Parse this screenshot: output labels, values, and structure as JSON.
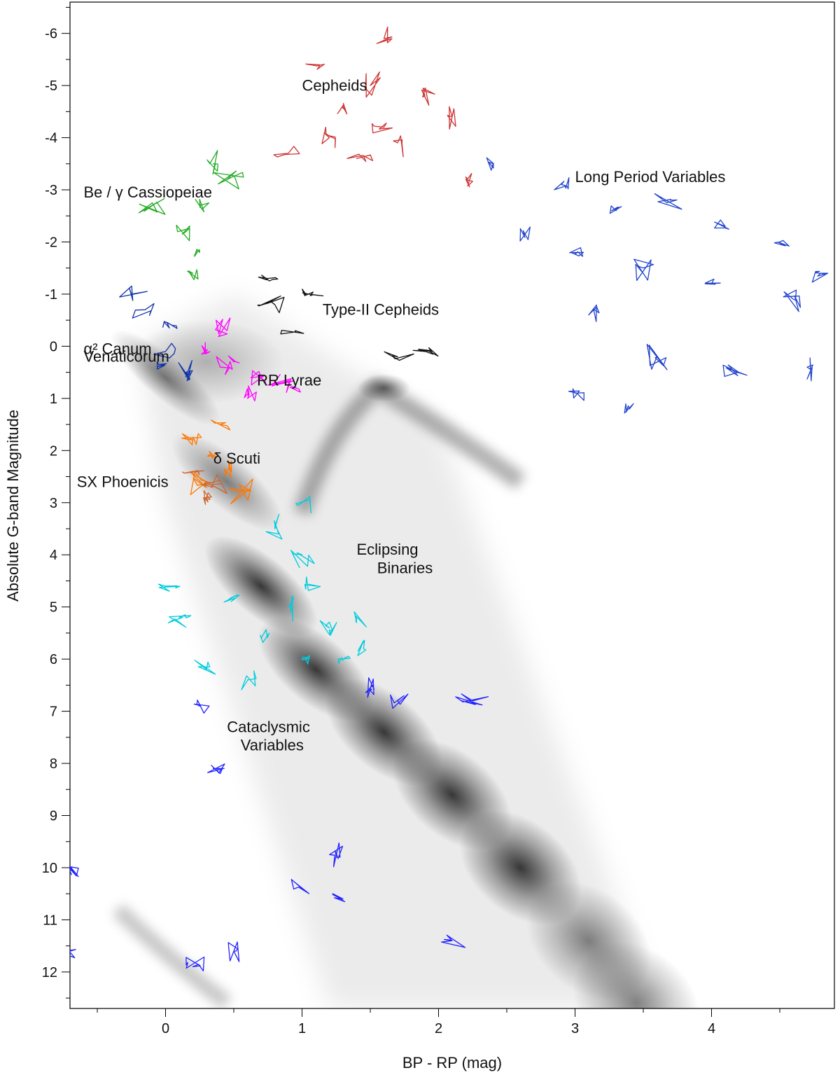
{
  "chart_data": {
    "type": "scatter",
    "title": "",
    "xlabel": "BP - RP (mag)",
    "ylabel": "Absolute G-band Magnitude",
    "xlim": [
      -0.7,
      4.9
    ],
    "ylim": [
      12.7,
      -6.6
    ],
    "x_ticks": [
      0,
      1,
      2,
      3,
      4
    ],
    "y_ticks": [
      -6,
      -5,
      -4,
      -3,
      -2,
      -1,
      0,
      1,
      2,
      3,
      4,
      5,
      6,
      7,
      8,
      9,
      10,
      11,
      12
    ],
    "grid": false,
    "background": "grey density of Gaia sources: main sequence from (0, 0.5) to (3.4, 12.5), red-giant clump near (1.6, 0.8), white-dwarf sequence near (-0.3, 11) to (0.4, 12.5)",
    "annotations": [
      {
        "text": "Cepheids",
        "x": 1.0,
        "y": -4.9
      },
      {
        "text": "Long Period Variables",
        "x": 3.0,
        "y": -3.15
      },
      {
        "text": "Be / γ Cassiopeiae",
        "x": -0.6,
        "y": -2.85
      },
      {
        "text": "Type-II Cepheids",
        "x": 1.15,
        "y": -0.6
      },
      {
        "text": "α² Canum",
        "x": -0.6,
        "y": 0.15
      },
      {
        "text": "Venaticorum",
        "x": -0.6,
        "y": 0.3
      },
      {
        "text": "RR Lyrae",
        "x": 0.67,
        "y": 0.75
      },
      {
        "text": "δ Scuti",
        "x": 0.35,
        "y": 2.25
      },
      {
        "text": "SX Phoenicis",
        "x": -0.65,
        "y": 2.7
      },
      {
        "text": "Eclipsing",
        "x": 1.4,
        "y": 4.0
      },
      {
        "text": "Binaries",
        "x": 1.55,
        "y": 4.35
      },
      {
        "text": "Cataclysmic",
        "x": 0.45,
        "y": 7.4
      },
      {
        "text": "Variables",
        "x": 0.55,
        "y": 7.75
      }
    ],
    "series": [
      {
        "name": "Cepheids",
        "color": "#cc3333",
        "points": [
          [
            1.1,
            -5.4
          ],
          [
            1.6,
            -5.9
          ],
          [
            1.5,
            -5.0
          ],
          [
            1.9,
            -4.8
          ],
          [
            1.3,
            -4.6
          ],
          [
            1.6,
            -4.2
          ],
          [
            1.2,
            -4.0
          ],
          [
            0.9,
            -3.7
          ],
          [
            1.4,
            -3.6
          ],
          [
            1.7,
            -3.9
          ],
          [
            2.1,
            -4.4
          ],
          [
            2.2,
            -3.2
          ]
        ]
      },
      {
        "name": "Long Period Variables",
        "color": "#2244cc",
        "points": [
          [
            2.4,
            -3.5
          ],
          [
            2.9,
            -3.1
          ],
          [
            3.3,
            -2.6
          ],
          [
            3.7,
            -2.8
          ],
          [
            4.1,
            -2.3
          ],
          [
            4.5,
            -2.0
          ],
          [
            2.6,
            -2.2
          ],
          [
            3.0,
            -1.8
          ],
          [
            3.5,
            -1.5
          ],
          [
            4.0,
            -1.2
          ],
          [
            4.6,
            -0.9
          ],
          [
            3.1,
            -0.6
          ],
          [
            3.6,
            0.2
          ],
          [
            4.2,
            0.5
          ],
          [
            3.0,
            0.9
          ],
          [
            3.4,
            1.2
          ],
          [
            4.8,
            -1.4
          ],
          [
            4.7,
            0.4
          ]
        ]
      },
      {
        "name": "Be / γ Cassiopeiae",
        "color": "#22aa22",
        "points": [
          [
            0.35,
            -3.5
          ],
          [
            0.25,
            -2.7
          ],
          [
            0.15,
            -2.2
          ],
          [
            0.25,
            -1.8
          ],
          [
            0.2,
            -1.4
          ],
          [
            0.45,
            -3.2
          ],
          [
            -0.1,
            -2.7
          ]
        ]
      },
      {
        "name": "Type-II Cepheids",
        "color": "#111111",
        "points": [
          [
            0.75,
            -1.3
          ],
          [
            1.05,
            -1.0
          ],
          [
            0.8,
            -0.8
          ],
          [
            0.95,
            -0.3
          ],
          [
            1.9,
            0.1
          ],
          [
            1.7,
            0.2
          ]
        ]
      },
      {
        "name": "α² Canum Venaticorum",
        "color": "#1133aa",
        "points": [
          [
            -0.25,
            -1.0
          ],
          [
            -0.15,
            -0.7
          ],
          [
            0.05,
            -0.4
          ],
          [
            -0.05,
            0.35
          ],
          [
            0.15,
            0.5
          ],
          [
            0.0,
            0.1
          ]
        ]
      },
      {
        "name": "RR Lyrae",
        "color": "#ff00ff",
        "points": [
          [
            0.3,
            0.1
          ],
          [
            0.5,
            0.3
          ],
          [
            0.7,
            0.6
          ],
          [
            0.45,
            -0.3
          ],
          [
            0.85,
            0.7
          ],
          [
            0.6,
            1.0
          ],
          [
            0.4,
            0.4
          ],
          [
            0.95,
            0.8
          ]
        ]
      },
      {
        "name": "δ Scuti",
        "color": "#ff7700",
        "points": [
          [
            0.2,
            1.8
          ],
          [
            0.35,
            2.1
          ],
          [
            0.45,
            2.4
          ],
          [
            0.3,
            2.6
          ],
          [
            0.55,
            2.8
          ],
          [
            0.4,
            1.5
          ]
        ]
      },
      {
        "name": "SX Phoenicis",
        "color": "#cc6633",
        "points": [
          [
            0.2,
            2.4
          ],
          [
            0.35,
            2.7
          ],
          [
            0.3,
            2.9
          ]
        ]
      },
      {
        "name": "Eclipsing Binaries",
        "color": "#00ccdd",
        "points": [
          [
            0.8,
            3.5
          ],
          [
            1.0,
            4.0
          ],
          [
            1.1,
            4.6
          ],
          [
            0.9,
            5.0
          ],
          [
            1.2,
            5.4
          ],
          [
            1.3,
            6.0
          ],
          [
            0.7,
            5.6
          ],
          [
            1.4,
            5.3
          ],
          [
            1.0,
            3.0
          ],
          [
            0.5,
            4.8
          ],
          [
            0.1,
            5.2
          ],
          [
            0.3,
            6.2
          ],
          [
            0.6,
            6.4
          ],
          [
            1.0,
            6.0
          ],
          [
            0.0,
            4.6
          ],
          [
            1.45,
            5.8
          ]
        ]
      },
      {
        "name": "Cataclysmic Variables",
        "color": "#2222ff",
        "points": [
          [
            0.25,
            6.9
          ],
          [
            2.25,
            6.8
          ],
          [
            1.5,
            6.6
          ],
          [
            1.7,
            6.8
          ],
          [
            0.35,
            8.1
          ],
          [
            -0.7,
            10.0
          ],
          [
            1.25,
            9.8
          ],
          [
            1.0,
            10.4
          ],
          [
            1.3,
            10.6
          ],
          [
            -0.7,
            11.6
          ],
          [
            0.5,
            11.6
          ],
          [
            0.2,
            11.9
          ],
          [
            2.1,
            11.4
          ]
        ]
      }
    ]
  }
}
